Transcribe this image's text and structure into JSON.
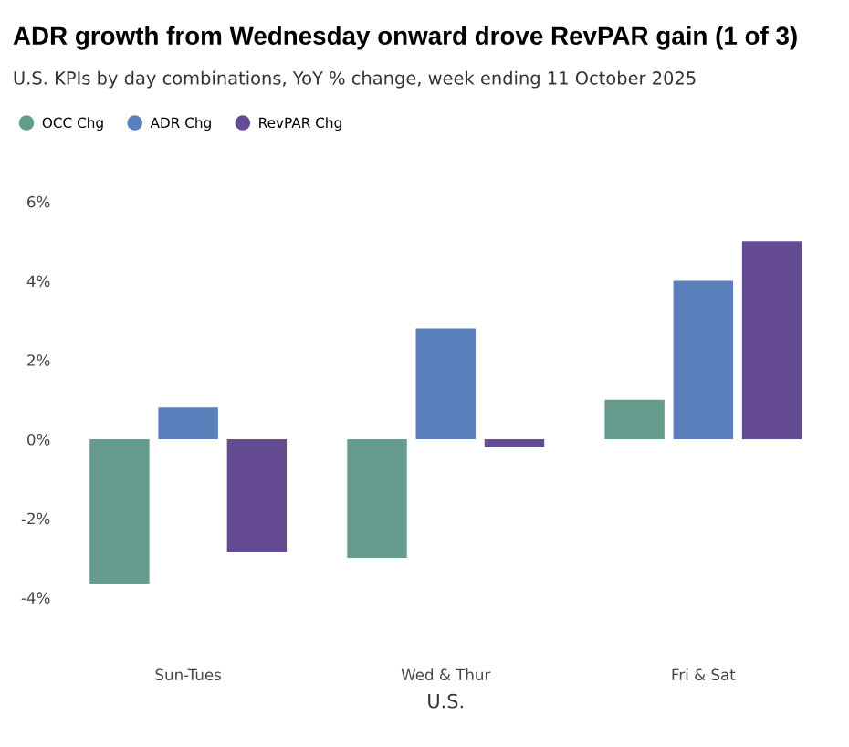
{
  "chart_data": {
    "type": "bar",
    "title": "ADR growth from Wednesday onward drove RevPAR gain (1 of 3)",
    "subtitle": "U.S. KPIs by day combinations, YoY % change, week ending 11 October 2025",
    "xlabel": "U.S.",
    "categories": [
      "Sun-Tues",
      "Wed & Thur",
      "Fri & Sat"
    ],
    "series": [
      {
        "name": "OCC Chg",
        "color": "#669c8e",
        "values": [
          -3.65,
          -3.0,
          1.0
        ]
      },
      {
        "name": "ADR Chg",
        "color": "#5b7fbb",
        "values": [
          0.8,
          2.8,
          4.0
        ]
      },
      {
        "name": "RevPAR Chg",
        "color": "#654b92",
        "values": [
          -2.85,
          -0.2,
          5.0
        ]
      }
    ],
    "ylim": [
      -4,
      6
    ],
    "yticks": [
      {
        "value": -4,
        "label": "-4%"
      },
      {
        "value": -2,
        "label": "-2%"
      },
      {
        "value": 0,
        "label": "0%"
      },
      {
        "value": 2,
        "label": "2%"
      },
      {
        "value": 4,
        "label": "4%"
      },
      {
        "value": 6,
        "label": "6%"
      }
    ],
    "grid": false,
    "legend": "top left"
  }
}
